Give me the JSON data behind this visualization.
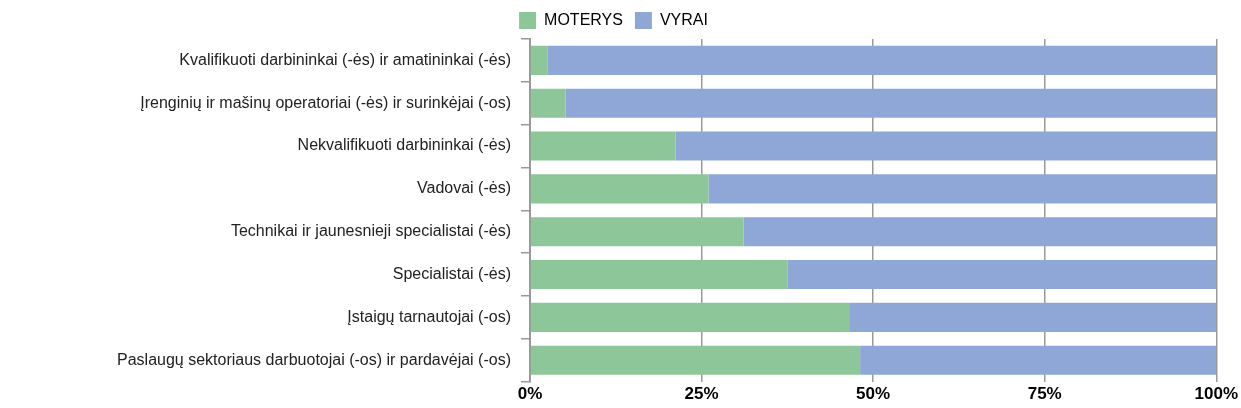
{
  "chart_data": {
    "type": "bar",
    "orientation": "horizontal",
    "stacked": true,
    "categories": [
      "Kvalifikuoti darbininkai (-ės) ir amatininkai (-ės)",
      "Įrenginių ir mašinų operatoriai (-ės) ir surinkėjai (-os)",
      "Nekvalifikuoti darbininkai (-ės)",
      "Vadovai (-ės)",
      "Technikai ir jaunesnieji specialistai (-ės)",
      "Specialistai (-ės)",
      "Įstaigų tarnautojai (-os)",
      "Paslaugų sektoriaus darbuotojai (-os) ir pardavėjai (-os)"
    ],
    "series": [
      {
        "name": "MOTERYS",
        "color": "#8dc799",
        "values": [
          2.6,
          5.2,
          21.2,
          26.0,
          31.1,
          37.5,
          46.5,
          48.1
        ]
      },
      {
        "name": "VYRAI",
        "color": "#8ea7d6",
        "values": [
          97.4,
          94.8,
          78.8,
          74.0,
          68.9,
          62.5,
          53.5,
          51.9
        ]
      }
    ],
    "xlim": [
      0,
      100
    ],
    "xticks": [
      {
        "value": 0,
        "label": "0%"
      },
      {
        "value": 25,
        "label": "25%"
      },
      {
        "value": 50,
        "label": "50%"
      },
      {
        "value": 75,
        "label": "75%"
      },
      {
        "value": 100,
        "label": "100%"
      }
    ],
    "grid": "x",
    "legend": "top"
  }
}
